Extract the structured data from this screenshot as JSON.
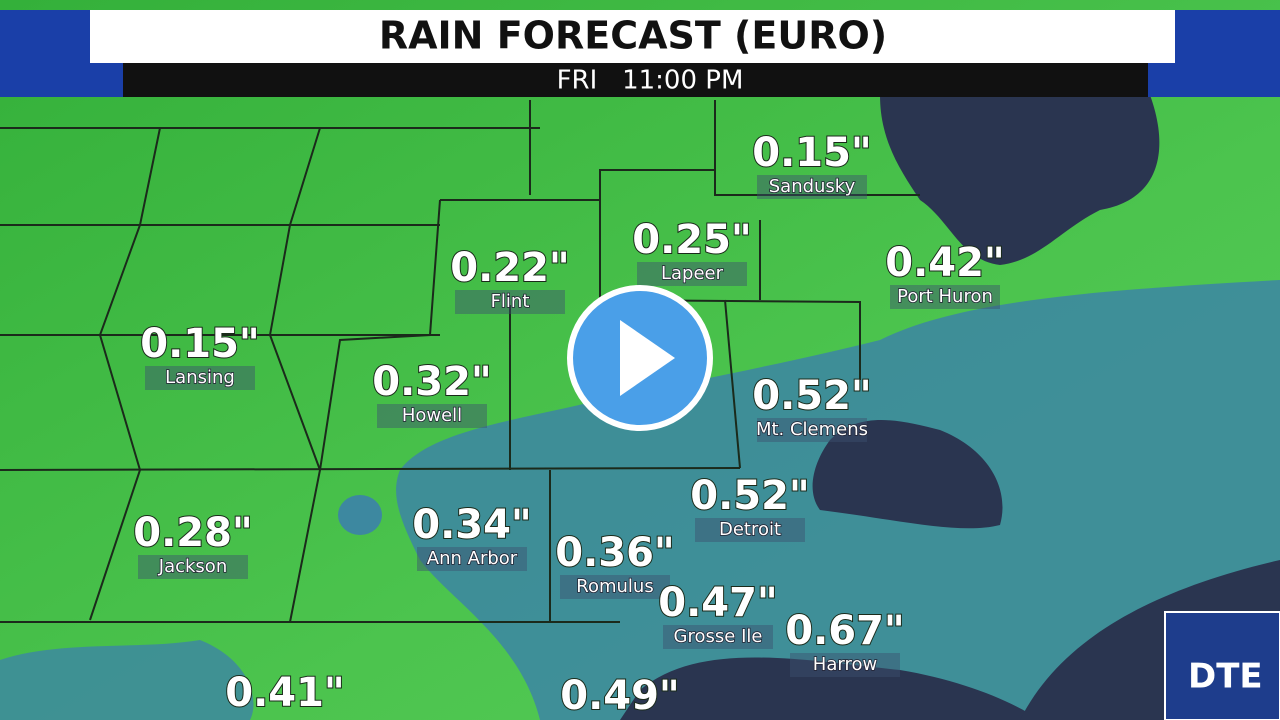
{
  "header": {
    "title": "RAIN FORECAST (EURO)",
    "subtitle": "FRI   11:00 PM"
  },
  "cities": [
    {
      "value": "0.15\"",
      "name": "Sandusky"
    },
    {
      "value": "0.25\"",
      "name": "Lapeer"
    },
    {
      "value": "0.22\"",
      "name": "Flint"
    },
    {
      "value": "0.42\"",
      "name": "Port Huron"
    },
    {
      "value": "0.15\"",
      "name": "Lansing"
    },
    {
      "value": "0.32\"",
      "name": "Howell"
    },
    {
      "value": "0.52\"",
      "name": "Mt. Clemens"
    },
    {
      "value": "0.52\"",
      "name": "Detroit"
    },
    {
      "value": "0.28\"",
      "name": "Jackson"
    },
    {
      "value": "0.34\"",
      "name": "Ann Arbor"
    },
    {
      "value": "0.36\"",
      "name": "Romulus"
    },
    {
      "value": "0.47\"",
      "name": "Grosse Ile"
    },
    {
      "value": "0.67\"",
      "name": "Harrow"
    },
    {
      "value": "0.41\""
    },
    {
      "value": "0.49\""
    }
  ],
  "logo": "DTE"
}
